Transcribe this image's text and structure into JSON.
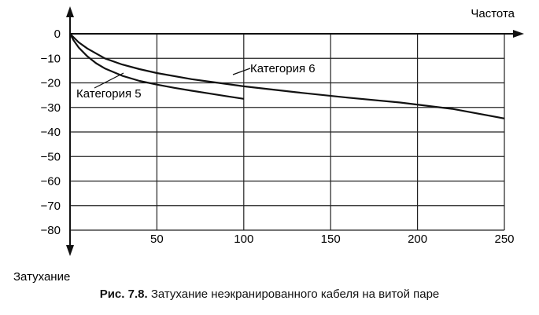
{
  "chart_data": {
    "type": "line",
    "xlabel": "Частота",
    "ylabel": "Затухание",
    "xlim": [
      0,
      250
    ],
    "ylim": [
      -80,
      0
    ],
    "x_ticks": [
      50,
      100,
      150,
      200,
      250
    ],
    "y_ticks": [
      0,
      -10,
      -20,
      -30,
      -40,
      -50,
      -60,
      -70,
      -80
    ],
    "grid": true,
    "series": [
      {
        "name": "Категория 5",
        "x": [
          0,
          2,
          5,
          10,
          15,
          20,
          30,
          40,
          50,
          60,
          70,
          80,
          90,
          100
        ],
        "y": [
          0,
          -2.6,
          -5.6,
          -9.2,
          -12,
          -14.1,
          -17.1,
          -19.2,
          -20.7,
          -22,
          -23.2,
          -24.3,
          -25.4,
          -26.5
        ]
      },
      {
        "name": "Категория 6",
        "x": [
          0,
          5,
          10,
          20,
          30,
          40,
          50,
          70,
          100,
          130,
          160,
          190,
          220,
          250
        ],
        "y": [
          0,
          -3.5,
          -6,
          -10,
          -12.5,
          -14.4,
          -16,
          -18.5,
          -21.4,
          -23.8,
          -26,
          -28,
          -30.6,
          -34.5
        ]
      }
    ]
  },
  "caption": {
    "number": "Рис. 7.8.",
    "text": "Затухание неэкранированного кабеля на витой паре"
  }
}
